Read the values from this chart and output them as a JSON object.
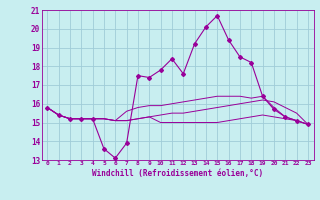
{
  "xlabel": "Windchill (Refroidissement éolien,°C)",
  "bg_color": "#c8eef0",
  "grid_color": "#a0ccd8",
  "line_color": "#990099",
  "x_hours": [
    0,
    1,
    2,
    3,
    4,
    5,
    6,
    7,
    8,
    9,
    10,
    11,
    12,
    13,
    14,
    15,
    16,
    17,
    18,
    19,
    20,
    21,
    22,
    23
  ],
  "series": {
    "main": [
      15.8,
      15.4,
      15.2,
      15.2,
      15.2,
      13.6,
      13.1,
      13.9,
      17.5,
      17.4,
      17.8,
      18.4,
      17.6,
      19.2,
      20.1,
      20.7,
      19.4,
      18.5,
      18.2,
      16.4,
      15.7,
      15.3,
      15.1,
      14.9
    ],
    "line2": [
      15.8,
      15.4,
      15.2,
      15.2,
      15.2,
      15.2,
      15.1,
      15.1,
      15.2,
      15.3,
      15.4,
      15.5,
      15.5,
      15.6,
      15.7,
      15.8,
      15.9,
      16.0,
      16.1,
      16.2,
      16.1,
      15.8,
      15.5,
      14.9
    ],
    "line3": [
      15.8,
      15.4,
      15.2,
      15.2,
      15.2,
      15.2,
      15.1,
      15.1,
      15.2,
      15.3,
      15.0,
      15.0,
      15.0,
      15.0,
      15.0,
      15.0,
      15.1,
      15.2,
      15.3,
      15.4,
      15.3,
      15.2,
      15.1,
      14.9
    ],
    "line4": [
      15.8,
      15.4,
      15.2,
      15.2,
      15.2,
      15.2,
      15.1,
      15.6,
      15.8,
      15.9,
      15.9,
      16.0,
      16.1,
      16.2,
      16.3,
      16.4,
      16.4,
      16.4,
      16.3,
      16.4,
      15.8,
      15.3,
      15.1,
      14.9
    ]
  },
  "ylim": [
    13,
    21
  ],
  "yticks": [
    13,
    14,
    15,
    16,
    17,
    18,
    19,
    20,
    21
  ],
  "xlim": [
    0,
    23
  ]
}
